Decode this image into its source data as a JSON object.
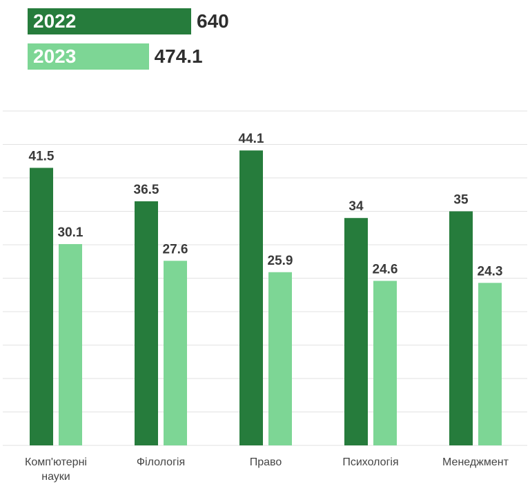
{
  "legend": [
    {
      "year": "2022",
      "total": "640",
      "total_value": 640,
      "color": "#267c3c"
    },
    {
      "year": "2023",
      "total": "474.1",
      "total_value": 474.1,
      "color": "#7dd695"
    }
  ],
  "chart_data": {
    "type": "bar",
    "categories": [
      [
        "Комп'ютерні",
        "науки"
      ],
      [
        "Філологія"
      ],
      [
        "Право"
      ],
      [
        "Психологія"
      ],
      [
        "Менеджмент"
      ]
    ],
    "series": [
      {
        "name": "2022",
        "values": [
          41.5,
          36.5,
          44.1,
          34,
          35
        ],
        "labels": [
          "41.5",
          "36.5",
          "44.1",
          "34",
          "35"
        ],
        "color": "#267c3c"
      },
      {
        "name": "2023",
        "values": [
          30.1,
          27.6,
          25.9,
          24.6,
          24.3
        ],
        "labels": [
          "30.1",
          "27.6",
          "25.9",
          "24.6",
          "24.3"
        ],
        "color": "#7dd695"
      }
    ],
    "ylim": [
      0,
      50
    ],
    "grid": true,
    "legend_position": "top-left"
  }
}
